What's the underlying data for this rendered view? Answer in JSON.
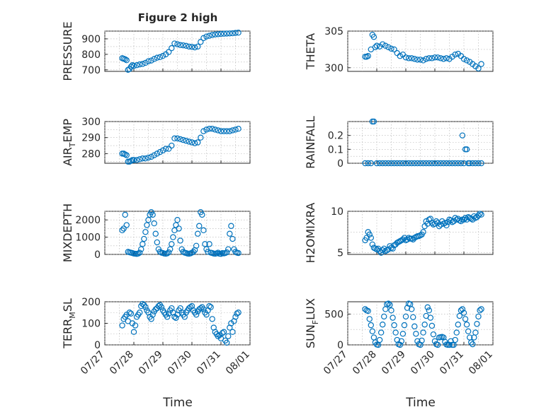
{
  "chart_data": [
    {
      "id": "pressure",
      "type": "scatter",
      "title": "Figure 2 high",
      "ylabel": "PRESSURE",
      "ylim": [
        690,
        950
      ],
      "yticks": [
        700,
        800,
        900
      ],
      "x": [
        27.6,
        27.65,
        27.7,
        27.75,
        27.8,
        27.85,
        27.9,
        27.95,
        28.0,
        28.1,
        28.2,
        28.3,
        28.4,
        28.5,
        28.6,
        28.7,
        28.8,
        28.9,
        29.0,
        29.1,
        29.2,
        29.3,
        29.4,
        29.5,
        29.6,
        29.7,
        29.8,
        29.9,
        30.0,
        30.1,
        30.2,
        30.3,
        30.4,
        30.5,
        30.6,
        30.7,
        30.8,
        30.9,
        31.0,
        31.1,
        31.2,
        31.3,
        31.4,
        31.5,
        31.6
      ],
      "y": [
        775,
        772,
        768,
        762,
        700,
        705,
        720,
        730,
        725,
        730,
        735,
        738,
        745,
        755,
        760,
        770,
        778,
        782,
        790,
        800,
        815,
        840,
        870,
        865,
        860,
        858,
        855,
        850,
        848,
        845,
        850,
        880,
        905,
        915,
        920,
        925,
        928,
        930,
        932,
        933,
        934,
        935,
        936,
        938,
        940
      ]
    },
    {
      "id": "theta",
      "type": "scatter",
      "ylabel": "THETA",
      "ylim": [
        299.5,
        305
      ],
      "yticks": [
        300,
        305
      ],
      "x": [
        27.6,
        27.65,
        27.7,
        27.8,
        27.85,
        27.9,
        27.95,
        28.0,
        28.1,
        28.2,
        28.3,
        28.4,
        28.5,
        28.6,
        28.7,
        28.8,
        28.9,
        29.0,
        29.1,
        29.2,
        29.3,
        29.4,
        29.5,
        29.6,
        29.7,
        29.8,
        29.9,
        30.0,
        30.1,
        30.2,
        30.3,
        30.4,
        30.5,
        30.6,
        30.7,
        30.8,
        30.9,
        31.0,
        31.1,
        31.2,
        31.3,
        31.4,
        31.5,
        31.6
      ],
      "y": [
        301.5,
        301.5,
        301.6,
        302.5,
        304.5,
        304.2,
        302.8,
        303.0,
        302.9,
        303.2,
        303.0,
        302.8,
        302.6,
        302.5,
        302.0,
        301.6,
        301.8,
        301.4,
        301.3,
        301.3,
        301.2,
        301.1,
        301.1,
        301.0,
        301.2,
        301.3,
        301.3,
        301.4,
        301.4,
        301.3,
        301.2,
        301.3,
        301.2,
        301.5,
        301.8,
        301.9,
        301.6,
        301.2,
        301.0,
        300.8,
        300.5,
        300.2,
        299.9,
        300.5
      ]
    },
    {
      "id": "air_temp",
      "type": "scatter",
      "ylabel_parts": [
        "AIR",
        "T",
        "EMP"
      ],
      "ylim": [
        274,
        300
      ],
      "yticks": [
        280,
        290,
        300
      ],
      "x": [
        27.6,
        27.65,
        27.7,
        27.75,
        27.8,
        27.85,
        27.9,
        27.95,
        28.0,
        28.1,
        28.2,
        28.3,
        28.4,
        28.5,
        28.6,
        28.7,
        28.8,
        28.9,
        29.0,
        29.1,
        29.2,
        29.3,
        29.4,
        29.5,
        29.6,
        29.7,
        29.8,
        29.9,
        30.0,
        30.1,
        30.2,
        30.3,
        30.4,
        30.5,
        30.6,
        30.7,
        30.8,
        30.9,
        31.0,
        31.1,
        31.2,
        31.3,
        31.4,
        31.5,
        31.6
      ],
      "y": [
        280,
        280,
        279.5,
        279,
        275,
        275,
        275.5,
        276,
        276,
        276,
        276.5,
        277,
        277,
        277.5,
        278,
        279,
        280,
        281,
        282,
        283,
        283,
        285,
        289.5,
        289.5,
        289,
        288.5,
        288,
        287.5,
        287,
        286.5,
        287,
        290,
        294,
        295,
        295.5,
        295.5,
        295,
        294.5,
        294,
        294,
        294,
        294,
        294.5,
        295,
        295.5
      ]
    },
    {
      "id": "rainfall",
      "type": "scatter",
      "ylabel": "RAINFALL",
      "ylim": [
        0,
        0.3
      ],
      "yticks": [
        0,
        0.1,
        0.2
      ],
      "x": [
        27.6,
        27.7,
        27.8,
        27.85,
        27.9,
        28.0,
        28.1,
        28.2,
        28.3,
        28.4,
        28.5,
        28.6,
        28.7,
        28.8,
        28.9,
        29.0,
        29.1,
        29.2,
        29.3,
        29.4,
        29.5,
        29.6,
        29.7,
        29.8,
        29.9,
        30.0,
        30.1,
        30.2,
        30.3,
        30.4,
        30.5,
        30.6,
        30.7,
        30.8,
        30.9,
        30.95,
        31.0,
        31.05,
        31.1,
        31.15,
        31.2,
        31.3,
        31.4,
        31.5,
        31.6
      ],
      "y": [
        0,
        0,
        0,
        0.3,
        0.3,
        0,
        0,
        0,
        0,
        0,
        0,
        0,
        0,
        0,
        0,
        0,
        0,
        0,
        0,
        0,
        0,
        0,
        0,
        0,
        0,
        0,
        0,
        0,
        0,
        0,
        0,
        0,
        0,
        0,
        0,
        0.2,
        0,
        0.1,
        0.1,
        0,
        0,
        0,
        0,
        0,
        0
      ]
    },
    {
      "id": "mixdepth",
      "type": "scatter",
      "ylabel": "MIXDEPTH",
      "ylim": [
        0,
        2500
      ],
      "yticks": [
        0,
        1000,
        2000
      ],
      "x": [
        27.6,
        27.65,
        27.7,
        27.75,
        27.8,
        27.85,
        27.9,
        27.95,
        28.0,
        28.05,
        28.1,
        28.15,
        28.2,
        28.25,
        28.3,
        28.35,
        28.4,
        28.45,
        28.5,
        28.55,
        28.6,
        28.65,
        28.7,
        28.75,
        28.8,
        28.85,
        28.9,
        28.95,
        29.0,
        29.05,
        29.1,
        29.15,
        29.2,
        29.25,
        29.3,
        29.35,
        29.4,
        29.45,
        29.5,
        29.55,
        29.6,
        29.65,
        29.7,
        29.75,
        29.8,
        29.85,
        29.9,
        29.95,
        30.0,
        30.05,
        30.1,
        30.15,
        30.2,
        30.25,
        30.3,
        30.35,
        30.4,
        30.45,
        30.5,
        30.55,
        30.6,
        30.65,
        30.7,
        30.75,
        30.8,
        30.85,
        30.9,
        30.95,
        31.0,
        31.05,
        31.1,
        31.15,
        31.2,
        31.25,
        31.3,
        31.35,
        31.4,
        31.45,
        31.5,
        31.55,
        31.6
      ],
      "y": [
        1400,
        1500,
        2300,
        1700,
        150,
        120,
        100,
        80,
        50,
        40,
        30,
        50,
        100,
        300,
        600,
        900,
        1300,
        1700,
        2000,
        2300,
        2450,
        2300,
        1800,
        1200,
        700,
        300,
        150,
        100,
        80,
        50,
        40,
        60,
        120,
        300,
        600,
        1000,
        1400,
        1700,
        2000,
        1500,
        800,
        300,
        150,
        100,
        80,
        50,
        40,
        60,
        100,
        150,
        250,
        500,
        1200,
        1650,
        2450,
        2300,
        1400,
        600,
        300,
        150,
        600,
        100,
        80,
        50,
        40,
        60,
        100,
        40,
        30,
        80,
        60,
        80,
        120,
        300,
        1200,
        1650,
        900,
        300,
        150,
        100,
        80
      ]
    },
    {
      "id": "h2omixra",
      "type": "scatter",
      "ylabel": "H2OMIXRA",
      "ylim": [
        4.8,
        10
      ],
      "yticks": [
        5,
        10
      ],
      "x": [
        27.6,
        27.65,
        27.7,
        27.75,
        27.8,
        27.85,
        27.9,
        27.95,
        28.0,
        28.05,
        28.1,
        28.15,
        28.2,
        28.25,
        28.3,
        28.35,
        28.4,
        28.45,
        28.5,
        28.55,
        28.6,
        28.65,
        28.7,
        28.75,
        28.8,
        28.85,
        28.9,
        28.95,
        29.0,
        29.05,
        29.1,
        29.15,
        29.2,
        29.25,
        29.3,
        29.35,
        29.4,
        29.45,
        29.5,
        29.55,
        29.6,
        29.65,
        29.7,
        29.75,
        29.8,
        29.85,
        29.9,
        29.95,
        30.0,
        30.05,
        30.1,
        30.15,
        30.2,
        30.25,
        30.3,
        30.35,
        30.4,
        30.45,
        30.5,
        30.55,
        30.6,
        30.65,
        30.7,
        30.75,
        30.8,
        30.85,
        30.9,
        30.95,
        31.0,
        31.05,
        31.1,
        31.15,
        31.2,
        31.25,
        31.3,
        31.35,
        31.4,
        31.45,
        31.5,
        31.55,
        31.6
      ],
      "y": [
        6.5,
        6.8,
        7.5,
        7.2,
        6.8,
        6.0,
        5.6,
        5.5,
        5.4,
        5.5,
        5.2,
        5.0,
        5.3,
        5.5,
        5.2,
        5.3,
        5.4,
        5.8,
        5.6,
        5.5,
        5.9,
        6.0,
        6.2,
        6.3,
        6.4,
        6.5,
        6.6,
        6.8,
        6.5,
        6.6,
        6.8,
        6.7,
        6.7,
        6.6,
        6.8,
        6.9,
        7.0,
        7.0,
        7.1,
        7.2,
        7.5,
        8.2,
        8.8,
        8.5,
        9.0,
        9.1,
        8.6,
        8.4,
        8.5,
        8.8,
        8.6,
        8.2,
        8.4,
        8.8,
        8.5,
        8.6,
        8.3,
        8.7,
        9.0,
        8.9,
        8.7,
        8.8,
        9.2,
        9.0,
        9.1,
        8.9,
        8.8,
        9.0,
        9.0,
        9.2,
        9.0,
        9.3,
        9.2,
        9.1,
        9.0,
        9.4,
        9.2,
        9.3,
        9.5,
        9.7,
        9.6
      ]
    },
    {
      "id": "terr_msl",
      "type": "scatter",
      "ylabel_parts": [
        "TERR",
        "M",
        "SL"
      ],
      "ylim": [
        0,
        200
      ],
      "yticks": [
        0,
        100,
        200
      ],
      "x": [
        27.6,
        27.65,
        27.7,
        27.75,
        27.8,
        27.85,
        27.9,
        27.95,
        28.0,
        28.05,
        28.1,
        28.15,
        28.2,
        28.25,
        28.3,
        28.35,
        28.4,
        28.45,
        28.5,
        28.55,
        28.6,
        28.65,
        28.7,
        28.75,
        28.8,
        28.85,
        28.9,
        28.95,
        29.0,
        29.05,
        29.1,
        29.15,
        29.2,
        29.25,
        29.3,
        29.35,
        29.4,
        29.45,
        29.5,
        29.55,
        29.6,
        29.65,
        29.7,
        29.75,
        29.8,
        29.85,
        29.9,
        29.95,
        30.0,
        30.05,
        30.1,
        30.15,
        30.2,
        30.25,
        30.3,
        30.35,
        30.4,
        30.45,
        30.5,
        30.55,
        30.6,
        30.65,
        30.7,
        30.75,
        30.8,
        30.85,
        30.9,
        30.95,
        31.0,
        31.05,
        31.1,
        31.15,
        31.2,
        31.25,
        31.3,
        31.35,
        31.4,
        31.45,
        31.5,
        31.55,
        31.6
      ],
      "y": [
        90,
        120,
        130,
        140,
        110,
        150,
        145,
        100,
        60,
        90,
        130,
        140,
        150,
        180,
        190,
        185,
        175,
        160,
        150,
        130,
        120,
        140,
        155,
        165,
        170,
        180,
        185,
        175,
        160,
        150,
        140,
        130,
        145,
        160,
        170,
        150,
        130,
        125,
        140,
        160,
        170,
        150,
        140,
        130,
        150,
        160,
        170,
        175,
        180,
        160,
        150,
        140,
        155,
        165,
        170,
        175,
        165,
        150,
        140,
        160,
        180,
        175,
        120,
        80,
        60,
        50,
        40,
        45,
        30,
        55,
        60,
        20,
        10,
        40,
        80,
        100,
        60,
        110,
        130,
        145,
        150
      ]
    },
    {
      "id": "sun_flux",
      "type": "scatter",
      "ylabel_parts": [
        "SUN",
        "F",
        "LUX"
      ],
      "ylim": [
        0,
        700
      ],
      "yticks": [
        0,
        500
      ],
      "x": [
        27.6,
        27.65,
        27.7,
        27.75,
        27.8,
        27.85,
        27.9,
        27.95,
        28.0,
        28.05,
        28.1,
        28.15,
        28.2,
        28.25,
        28.3,
        28.35,
        28.4,
        28.45,
        28.5,
        28.55,
        28.6,
        28.65,
        28.7,
        28.75,
        28.8,
        28.85,
        28.9,
        28.95,
        29.0,
        29.05,
        29.1,
        29.15,
        29.2,
        29.25,
        29.3,
        29.35,
        29.4,
        29.45,
        29.5,
        29.55,
        29.6,
        29.65,
        29.7,
        29.75,
        29.8,
        29.85,
        29.9,
        29.95,
        30.0,
        30.05,
        30.1,
        30.15,
        30.2,
        30.25,
        30.3,
        30.35,
        30.4,
        30.45,
        30.5,
        30.55,
        30.6,
        30.65,
        30.7,
        30.75,
        30.8,
        30.85,
        30.9,
        30.95,
        31.0,
        31.05,
        31.1,
        31.15,
        31.2,
        31.25,
        31.3,
        31.35,
        31.4,
        31.45,
        31.5,
        31.55,
        31.6
      ],
      "y": [
        580,
        560,
        550,
        420,
        320,
        220,
        120,
        40,
        5,
        0,
        80,
        200,
        330,
        460,
        580,
        660,
        670,
        650,
        560,
        440,
        320,
        200,
        80,
        10,
        0,
        60,
        180,
        320,
        460,
        600,
        670,
        660,
        580,
        450,
        300,
        180,
        60,
        10,
        0,
        70,
        200,
        330,
        470,
        610,
        560,
        440,
        310,
        170,
        60,
        10,
        0,
        120,
        125,
        130,
        120,
        50,
        5,
        0,
        0,
        60,
        0,
        0,
        80,
        200,
        330,
        470,
        560,
        580,
        520,
        420,
        330,
        220,
        120,
        40,
        10,
        120,
        200,
        340,
        460,
        560,
        580
      ]
    }
  ],
  "shared_x": {
    "xlim": [
      "07/27",
      "08/01"
    ],
    "tick_labels": [
      "07/27",
      "07/28",
      "07/29",
      "07/30",
      "07/31",
      "08/01"
    ],
    "xlabel": "Time"
  },
  "colors": {
    "marker": "#0072bd",
    "axes": "#262626",
    "grid": "#b0b0b0"
  }
}
